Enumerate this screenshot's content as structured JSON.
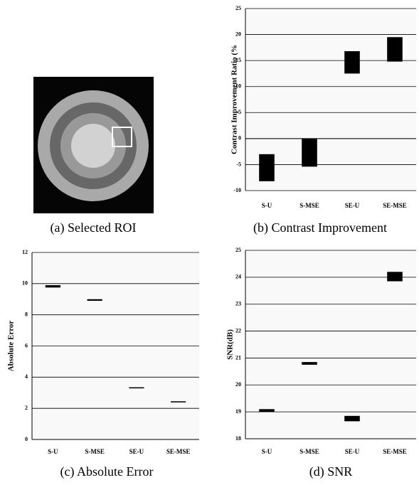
{
  "image_caption": "(a) Selected ROI",
  "chart_data": [
    {
      "type": "floating_bar",
      "caption": "(b) Contrast Improvement",
      "y_label": "Contrast Improvement Ratio (%",
      "categories": [
        "S-U",
        "S-MSE",
        "SE-U",
        "SE-MSE"
      ],
      "low": [
        -8.2,
        -5.4,
        12.5,
        14.8
      ],
      "high": [
        -3,
        0,
        16.8,
        19.5
      ],
      "color": "#000000",
      "ylim": [
        -10,
        25
      ],
      "yticks": [
        -10,
        -5,
        0,
        5,
        10,
        15,
        20,
        25
      ],
      "grid": true
    },
    {
      "type": "floating_bar",
      "caption": "(c) Absolute Error",
      "y_label": "Absolute Error",
      "categories": [
        "S-U",
        "S-MSE",
        "SE-U",
        "SE-MSE"
      ],
      "low": [
        9.75,
        8.9,
        3.28,
        2.38
      ],
      "high": [
        9.9,
        9.0,
        3.35,
        2.45
      ],
      "color": "#000000",
      "ylim": [
        0,
        12
      ],
      "yticks": [
        0,
        2,
        4,
        6,
        8,
        10,
        12
      ],
      "grid": true
    },
    {
      "type": "floating_bar",
      "caption": "(d) SNR",
      "y_label": "SNR(dB)",
      "categories": [
        "S-U",
        "S-MSE",
        "SE-U",
        "SE-MSE"
      ],
      "low": [
        19.0,
        20.75,
        18.65,
        23.85
      ],
      "high": [
        19.1,
        20.85,
        18.85,
        24.2
      ],
      "color": "#000000",
      "ylim": [
        18,
        25
      ],
      "yticks": [
        18,
        19,
        20,
        21,
        22,
        23,
        24,
        25
      ],
      "grid": true
    }
  ]
}
